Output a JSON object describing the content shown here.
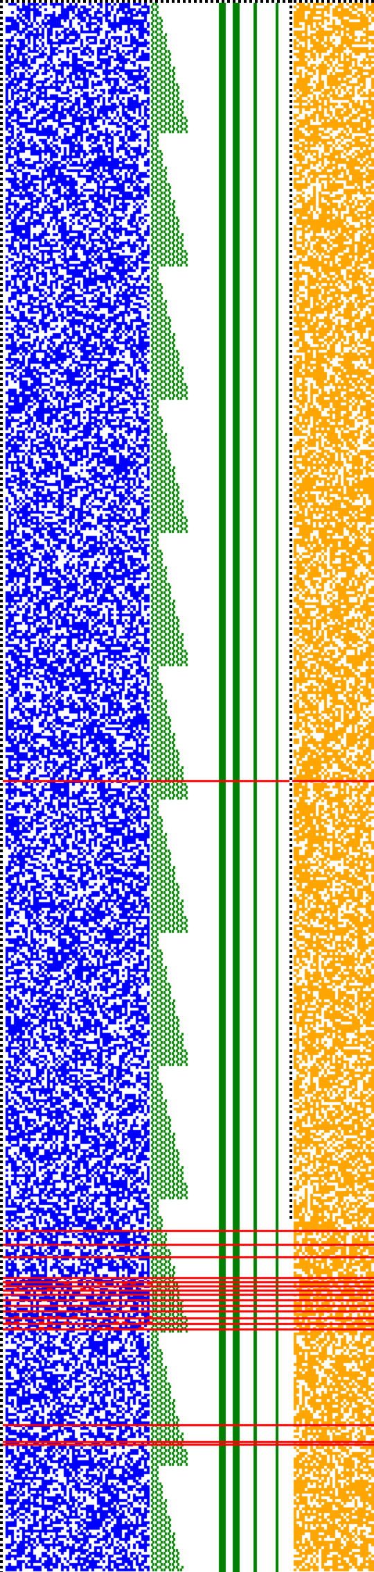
{
  "palette": {
    "background": "#ffffff",
    "bits": "#0000ff",
    "staircase": "#008000",
    "columns": "#008000",
    "pattern": "#ffa500",
    "markers": "#ff0000",
    "border": "#000000"
  },
  "panels": [
    "bit-grid",
    "staircase",
    "vertical-columns",
    "pattern-grid"
  ],
  "vertical_columns": [
    1,
    2,
    3,
    4
  ],
  "markers": {
    "single_row_count": 1,
    "group_1_count": 5,
    "group_2_count": 12,
    "group_3_count": 5
  }
}
